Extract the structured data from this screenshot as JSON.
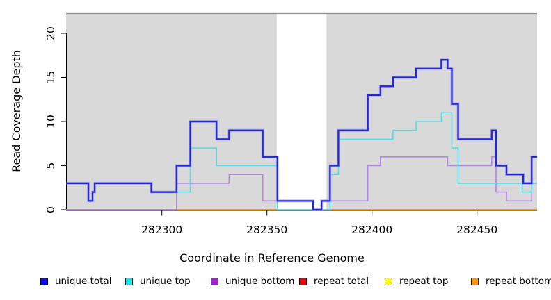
{
  "figure": {
    "background": "#ffffff"
  },
  "plot": {
    "bg_color": "#d9d9d9",
    "top_border_color": "#8f8f8f",
    "gap_region": {
      "from": 282355,
      "to": 282380
    }
  },
  "chart_data": {
    "type": "line",
    "step": true,
    "title": "",
    "xlabel": "Coordinate in Reference Genome",
    "ylabel": "Read Coverage Depth",
    "xlim": [
      282254,
      282479
    ],
    "ylim": [
      0,
      22.3
    ],
    "x_ticks": [
      "282300",
      "282350",
      "282400",
      "282450"
    ],
    "x_tick_values": [
      282300,
      282350,
      282400,
      282450
    ],
    "y_ticks": [
      "0",
      "5",
      "10",
      "15",
      "20"
    ],
    "y_tick_values": [
      0,
      5,
      10,
      15,
      20
    ],
    "grid": false,
    "legend_position": "bottom",
    "series": [
      {
        "name": "repeat total",
        "color": "#e8607a",
        "width": 1.4,
        "halo": false,
        "segments": [
          {
            "points": [
              [
                282254.4,
                0
              ]
            ],
            "end": 282307
          }
        ]
      },
      {
        "name": "repeat bottom",
        "color": "#ff9712",
        "width": 2.0,
        "halo": false,
        "segments": [
          {
            "points": [
              [
                282307,
                0
              ]
            ],
            "end": 282355.5
          },
          {
            "points": [
              [
                282377.5,
                0
              ]
            ],
            "end": 282478.6
          }
        ]
      },
      {
        "name": "repeat top",
        "color": "#a8d8a8",
        "width": 1.6,
        "halo": false,
        "segments": [
          {
            "points": [
              [
                282355,
                0
              ]
            ],
            "end": 282377.5
          }
        ]
      },
      {
        "name": "unique bottom",
        "color": "#b388e6",
        "width": 1.6,
        "halo": false,
        "segments": [
          {
            "points": [
              [
                282254.4,
                0
              ],
              [
                282307,
                3
              ],
              [
                282332,
                4
              ],
              [
                282348,
                1
              ],
              [
                282372,
                0
              ],
              [
                282376,
                1
              ],
              [
                282398,
                5
              ],
              [
                282404,
                6
              ],
              [
                282436,
                5
              ],
              [
                282457,
                6
              ],
              [
                282459,
                2
              ],
              [
                282464,
                1
              ],
              [
                282476,
                3
              ]
            ],
            "end": 282478.6
          }
        ]
      },
      {
        "name": "unique top",
        "color": "#52dde8",
        "width": 1.6,
        "halo": false,
        "segments": [
          {
            "points": [
              [
                282254.4,
                3
              ],
              [
                282265,
                1
              ],
              [
                282267,
                2
              ],
              [
                282268,
                3
              ],
              [
                282295,
                2
              ],
              [
                282313.5,
                7
              ],
              [
                282326,
                5
              ],
              [
                282355,
                0
              ],
              [
                282380,
                4
              ],
              [
                282384,
                8
              ],
              [
                282410,
                9
              ],
              [
                282421,
                10
              ],
              [
                282433,
                11
              ],
              [
                282438,
                7
              ],
              [
                282441,
                3
              ],
              [
                282471.5,
                2
              ],
              [
                282476,
                3
              ]
            ],
            "end": 282478.6
          }
        ]
      },
      {
        "name": "unique total",
        "color": "#2525dd",
        "width": 2.2,
        "halo": true,
        "segments": [
          {
            "points": [
              [
                282254.4,
                3
              ],
              [
                282265,
                1
              ],
              [
                282267,
                2
              ],
              [
                282268,
                3
              ],
              [
                282295,
                2
              ],
              [
                282307,
                5
              ],
              [
                282313.5,
                10
              ],
              [
                282326,
                8
              ],
              [
                282332,
                9
              ],
              [
                282348,
                6
              ],
              [
                282355,
                1
              ],
              [
                282372,
                0
              ],
              [
                282376,
                1
              ],
              [
                282380,
                5
              ],
              [
                282384,
                9
              ],
              [
                282398,
                13
              ],
              [
                282404,
                14
              ],
              [
                282410,
                15
              ],
              [
                282421,
                16
              ],
              [
                282433,
                17
              ],
              [
                282436,
                16
              ],
              [
                282438,
                12
              ],
              [
                282441,
                8
              ],
              [
                282457,
                9
              ],
              [
                282459,
                5
              ],
              [
                282464,
                4
              ],
              [
                282472,
                3
              ],
              [
                282476,
                6
              ]
            ],
            "end": 282478.6
          }
        ]
      }
    ]
  },
  "legend": {
    "items": [
      {
        "label": "unique total",
        "color": "#0b0bf0"
      },
      {
        "label": "unique top",
        "color": "#00eeee"
      },
      {
        "label": "unique bottom",
        "color": "#9d22d2"
      },
      {
        "label": "repeat total",
        "color": "#ee0000"
      },
      {
        "label": "repeat top",
        "color": "#ffff00"
      },
      {
        "label": "repeat bottom",
        "color": "#ff9800"
      }
    ]
  }
}
